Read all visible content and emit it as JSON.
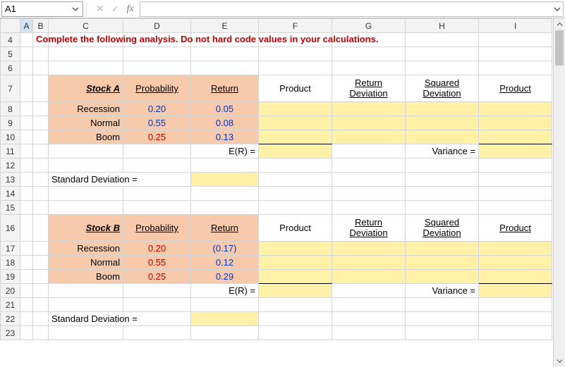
{
  "formula_bar": {
    "name_box": "A1",
    "cancel_glyph": "✕",
    "confirm_glyph": "✓",
    "fx_label": "fx",
    "formula_value": ""
  },
  "columns": [
    "A",
    "B",
    "C",
    "D",
    "E",
    "F",
    "G",
    "H",
    "I"
  ],
  "row_numbers": [
    "4",
    "5",
    "6",
    "7",
    "8",
    "9",
    "10",
    "11",
    "12",
    "13",
    "14",
    "15",
    "16",
    "17",
    "18",
    "19",
    "20",
    "21",
    "22",
    "23"
  ],
  "instruction": "Complete the following analysis. Do not hard code values in your calculations.",
  "headers": {
    "probability": "Probability",
    "ret": "Return",
    "product": "Product",
    "ret_dev": "Return Deviation",
    "sq_dev": "Squared Deviation",
    "product2": "Product"
  },
  "labels": {
    "er": "E(R) =",
    "variance": "Variance =",
    "std_dev": "Standard Deviation ="
  },
  "stock_a": {
    "title": "Stock A",
    "rows": [
      {
        "state": "Recession",
        "prob": "0.20",
        "ret": "0.05",
        "prob_color": "blue",
        "ret_color": "blue"
      },
      {
        "state": "Normal",
        "prob": "0.55",
        "ret": "0.08",
        "prob_color": "blue",
        "ret_color": "blue"
      },
      {
        "state": "Boom",
        "prob": "0.25",
        "ret": "0.13",
        "prob_color": "red",
        "ret_color": "blue"
      }
    ]
  },
  "stock_b": {
    "title": "Stock B",
    "rows": [
      {
        "state": "Recession",
        "prob": "0.20",
        "ret": "(0.17)",
        "prob_color": "red",
        "ret_color": "blue"
      },
      {
        "state": "Normal",
        "prob": "0.55",
        "ret": "0.12",
        "prob_color": "red",
        "ret_color": "blue"
      },
      {
        "state": "Boom",
        "prob": "0.25",
        "ret": "0.29",
        "prob_color": "red",
        "ret_color": "blue"
      }
    ]
  },
  "colors": {
    "orange_fill": "#f7caac",
    "yellow_fill": "#fff2a8",
    "red_text": "#c00000",
    "blue_text": "#0033cc",
    "grid": "#d4d4d4",
    "header_fill": "#f3f3f3"
  }
}
